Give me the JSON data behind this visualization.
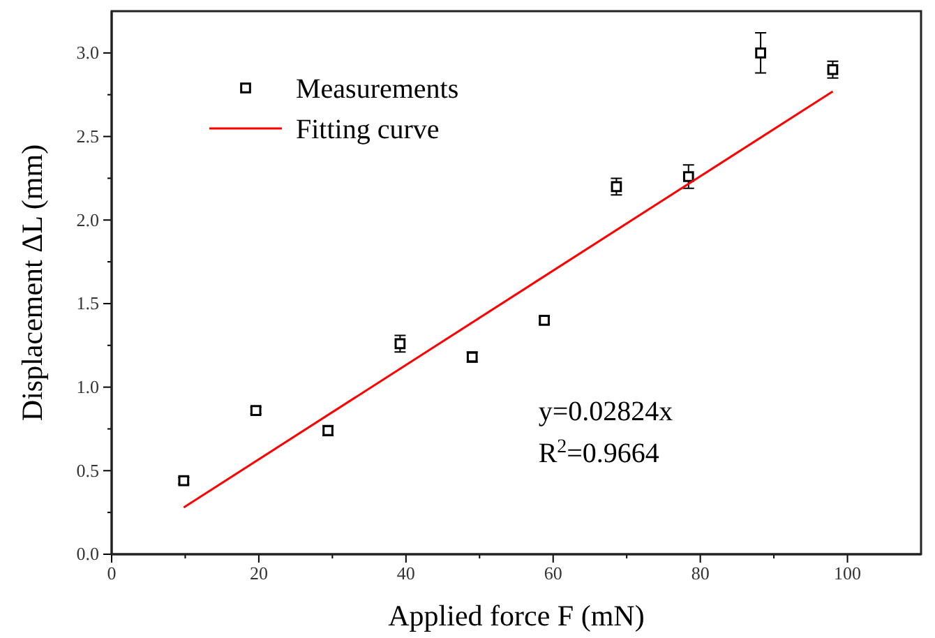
{
  "chart_data": {
    "type": "scatter",
    "xlabel": "Applied force F (mN)",
    "ylabel": "Displacement ΔL (mm)",
    "xlim": [
      0,
      110
    ],
    "ylim": [
      0,
      3.25
    ],
    "xticks": [
      0,
      {
        "value": 10,
        "label": null
      },
      20,
      {
        "value": 30,
        "label": null
      },
      40,
      {
        "value": 50,
        "label": null
      },
      60,
      {
        "value": 70,
        "label": null
      },
      80,
      {
        "value": 90,
        "label": null
      },
      100
    ],
    "yticks": [
      {
        "value": 0,
        "label": "0.0"
      },
      {
        "value": 0.25,
        "label": null
      },
      {
        "value": 0.5,
        "label": "0.5"
      },
      {
        "value": 0.75,
        "label": null
      },
      {
        "value": 1,
        "label": "1.0"
      },
      {
        "value": 1.25,
        "label": null
      },
      {
        "value": 1.5,
        "label": "1.5"
      },
      {
        "value": 1.75,
        "label": null
      },
      {
        "value": 2,
        "label": "2.0"
      },
      {
        "value": 2.25,
        "label": null
      },
      {
        "value": 2.5,
        "label": "2.5"
      },
      {
        "value": 2.75,
        "label": null
      },
      {
        "value": 3,
        "label": "3.0"
      }
    ],
    "legend": "top left",
    "grid": false,
    "annotations": [
      "y=0.02824x",
      "R$^{2}$=0.9664"
    ],
    "series": [
      {
        "name": "Measurements",
        "marker": "square",
        "color": "#000000",
        "x": [
          9.8,
          19.6,
          29.4,
          39.2,
          49,
          58.8,
          68.6,
          78.4,
          88.2,
          98
        ],
        "values": [
          0.44,
          0.86,
          0.74,
          1.26,
          1.18,
          1.4,
          2.2,
          2.26,
          3.0,
          2.9
        ],
        "errors": [
          0.02,
          0.02,
          0.03,
          0.05,
          0.03,
          0.02,
          0.05,
          0.07,
          0.12,
          0.05
        ]
      },
      {
        "name": "Fitting curve",
        "type": "line",
        "marker": "none",
        "line_style": "solid",
        "color": "#ff0000",
        "x": [
          9.8,
          98
        ],
        "values": [
          0.28,
          2.77
        ]
      }
    ]
  }
}
